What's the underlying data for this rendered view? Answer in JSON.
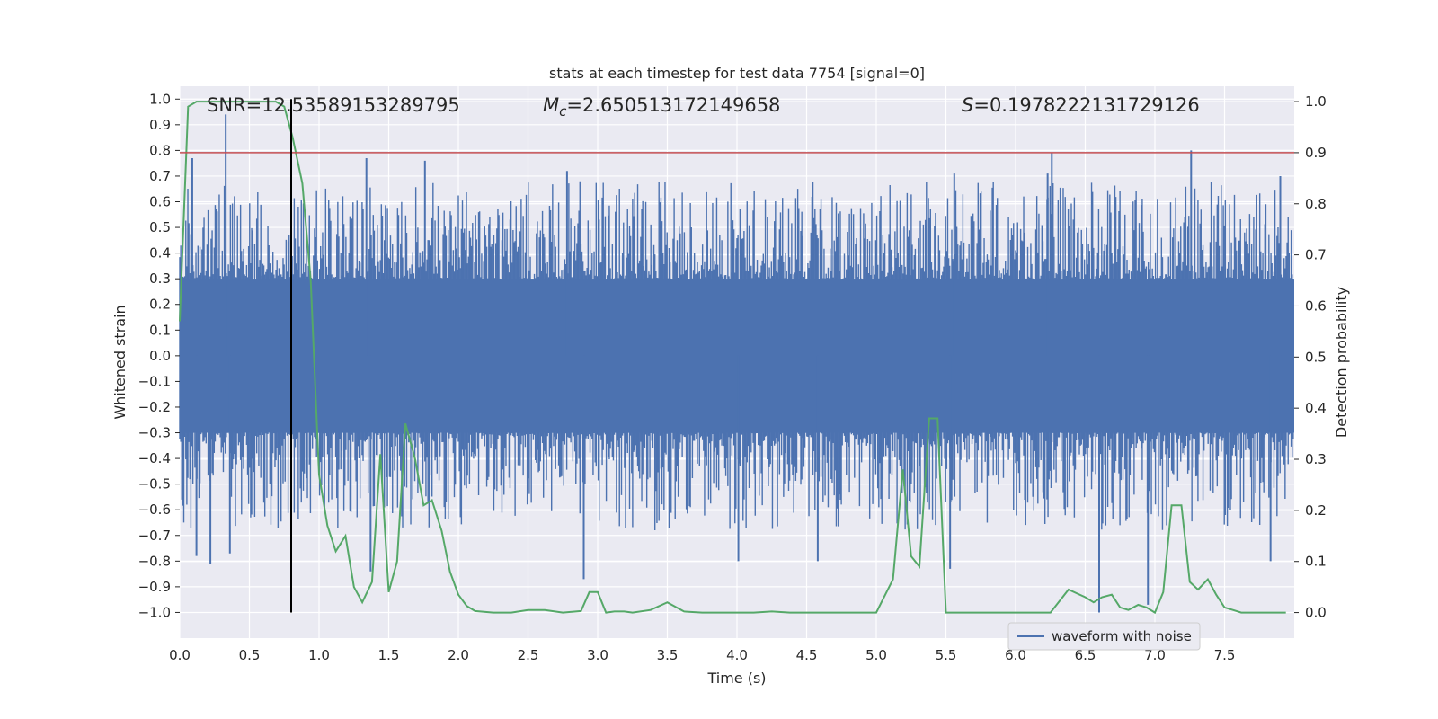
{
  "chart_data": {
    "type": "line",
    "title": "stats at each timestep for test data 7754 [signal=0]",
    "xlabel": "Time (s)",
    "ylabel": "Whitened strain",
    "ylabel_right": "Detection probability",
    "xlim": [
      0,
      8
    ],
    "ylim": [
      -1.1,
      1.05
    ],
    "ylim_right": [
      -0.05,
      1.03
    ],
    "x_ticks": [
      0.0,
      0.5,
      1.0,
      1.5,
      2.0,
      2.5,
      3.0,
      3.5,
      4.0,
      4.5,
      5.0,
      5.5,
      6.0,
      6.5,
      7.0,
      7.5
    ],
    "x_tick_labels": [
      "0.0",
      "0.5",
      "1.0",
      "1.5",
      "2.0",
      "2.5",
      "3.0",
      "3.5",
      "4.0",
      "4.5",
      "5.0",
      "5.5",
      "6.0",
      "6.5",
      "7.0",
      "7.5"
    ],
    "y_ticks": [
      -1.0,
      -0.9,
      -0.8,
      -0.7,
      -0.6,
      -0.5,
      -0.4,
      -0.3,
      -0.2,
      -0.1,
      0.0,
      0.1,
      0.2,
      0.3,
      0.4,
      0.5,
      0.6,
      0.7,
      0.8,
      0.9,
      1.0
    ],
    "y_tick_labels": [
      "−1.0",
      "−0.9",
      "−0.8",
      "−0.7",
      "−0.6",
      "−0.5",
      "−0.4",
      "−0.3",
      "−0.2",
      "−0.1",
      "0.0",
      "0.1",
      "0.2",
      "0.3",
      "0.4",
      "0.5",
      "0.6",
      "0.7",
      "0.8",
      "0.9",
      "1.0"
    ],
    "y_ticks_right": [
      0.0,
      0.1,
      0.2,
      0.3,
      0.4,
      0.5,
      0.6,
      0.7,
      0.8,
      0.9,
      1.0
    ],
    "y_tick_labels_right": [
      "0.0",
      "0.1",
      "0.2",
      "0.3",
      "0.4",
      "0.5",
      "0.6",
      "0.7",
      "0.8",
      "0.9",
      "1.0"
    ],
    "annotations": {
      "snr": "SNR=12.53589153289795",
      "mc_symbol": "M",
      "mc_sub": "c",
      "mc_value": "=2.650513172149658",
      "s_symbol": "S",
      "s_value": "=0.1978222131729126"
    },
    "threshold": {
      "axis": "right",
      "value": 0.9,
      "color": "#c44e52"
    },
    "vertical_marker": {
      "x": 0.8,
      "color": "#000000"
    },
    "legend": {
      "position": "lower-right",
      "entries": [
        "waveform with noise"
      ]
    },
    "waveform": {
      "name": "waveform with noise",
      "color": "#4c72b0",
      "duration_s": 8,
      "core_band": [
        -0.3,
        0.3
      ],
      "spikes": [
        [
          0.33,
          0.94
        ],
        [
          0.09,
          0.77
        ],
        [
          1.34,
          0.77
        ],
        [
          1.76,
          0.76
        ],
        [
          6.26,
          0.79
        ],
        [
          7.26,
          0.8
        ],
        [
          2.78,
          0.72
        ],
        [
          5.56,
          0.71
        ],
        [
          6.23,
          0.71
        ],
        [
          7.9,
          0.7
        ],
        [
          2.9,
          -0.87
        ],
        [
          6.6,
          -1.0
        ],
        [
          6.95,
          -0.97
        ],
        [
          0.22,
          -0.81
        ],
        [
          0.36,
          -0.77
        ],
        [
          1.37,
          -0.84
        ],
        [
          4.01,
          -0.8
        ],
        [
          4.58,
          -0.8
        ],
        [
          5.53,
          -0.83
        ],
        [
          7.83,
          -0.8
        ],
        [
          0.12,
          -0.78
        ]
      ]
    },
    "series": [
      {
        "name": "detection probability",
        "axis": "right",
        "color": "#55a868",
        "x": [
          0.0,
          0.06,
          0.12,
          0.19,
          0.25,
          0.31,
          0.38,
          0.44,
          0.5,
          0.56,
          0.62,
          0.69,
          0.75,
          0.81,
          0.88,
          0.94,
          1.0,
          1.06,
          1.12,
          1.19,
          1.25,
          1.31,
          1.38,
          1.44,
          1.5,
          1.56,
          1.62,
          1.69,
          1.75,
          1.81,
          1.88,
          1.94,
          2.0,
          2.06,
          2.12,
          2.25,
          2.38,
          2.5,
          2.62,
          2.75,
          2.88,
          2.94,
          3.0,
          3.06,
          3.12,
          3.19,
          3.25,
          3.38,
          3.5,
          3.62,
          3.75,
          3.88,
          4.0,
          4.12,
          4.25,
          4.38,
          4.5,
          4.75,
          5.0,
          5.12,
          5.19,
          5.25,
          5.31,
          5.38,
          5.44,
          5.5,
          5.56,
          5.62,
          5.69,
          5.75,
          5.88,
          6.0,
          6.12,
          6.25,
          6.38,
          6.5,
          6.56,
          6.62,
          6.69,
          6.75,
          6.81,
          6.88,
          6.94,
          7.0,
          7.06,
          7.12,
          7.19,
          7.25,
          7.31,
          7.38,
          7.44,
          7.5,
          7.56,
          7.62,
          7.69,
          7.75,
          7.81,
          7.88,
          7.94
        ],
        "values": [
          0.57,
          0.99,
          1.0,
          1.0,
          1.0,
          1.0,
          1.0,
          1.0,
          1.0,
          1.0,
          1.0,
          1.0,
          0.99,
          0.93,
          0.84,
          0.65,
          0.27,
          0.17,
          0.12,
          0.15,
          0.05,
          0.02,
          0.06,
          0.31,
          0.04,
          0.1,
          0.37,
          0.3,
          0.21,
          0.22,
          0.16,
          0.08,
          0.035,
          0.013,
          0.003,
          0.0,
          0.0,
          0.005,
          0.005,
          0.0,
          0.003,
          0.04,
          0.04,
          0.0,
          0.002,
          0.002,
          0.0,
          0.005,
          0.02,
          0.002,
          0.0,
          0.0,
          0.0,
          0.0,
          0.002,
          0.0,
          0.0,
          0.0,
          0.0,
          0.065,
          0.28,
          0.11,
          0.09,
          0.38,
          0.38,
          0.0,
          0.0,
          0.0,
          0.0,
          0.0,
          0.0,
          0.0,
          0.0,
          0.0,
          0.045,
          0.03,
          0.02,
          0.03,
          0.035,
          0.01,
          0.005,
          0.015,
          0.01,
          0.0,
          0.04,
          0.21,
          0.21,
          0.06,
          0.045,
          0.065,
          0.035,
          0.01,
          0.005,
          0.0,
          0.0,
          0.0,
          0.0,
          0.0,
          0.0
        ]
      }
    ]
  }
}
